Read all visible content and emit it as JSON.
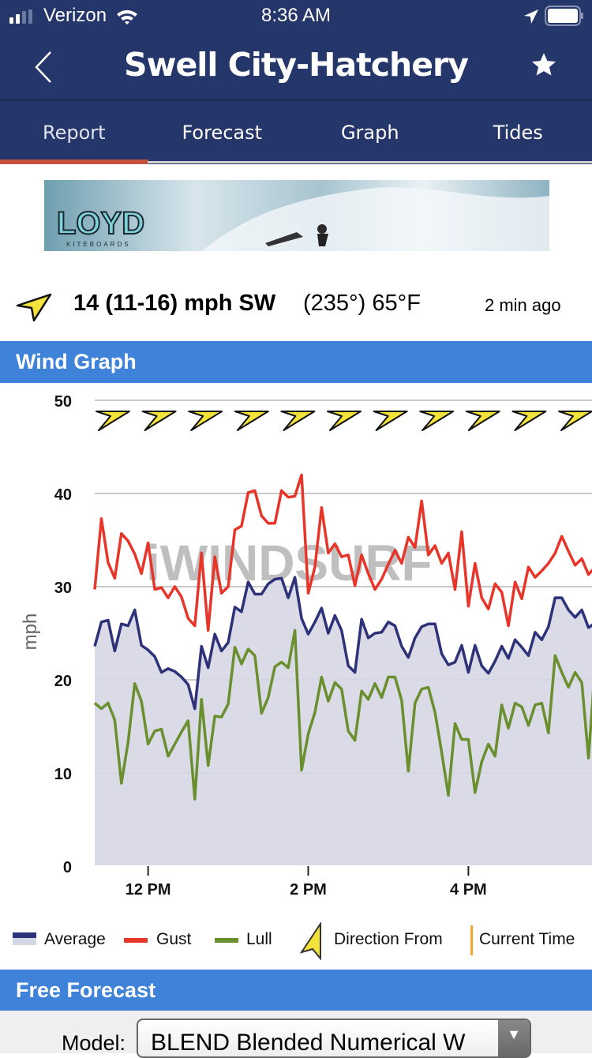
{
  "status_bar": {
    "carrier": "Verizon",
    "time": "8:36 AM"
  },
  "nav": {
    "title": "Swell City-Hatchery",
    "back_icon": "chevron-left-icon",
    "favorite_icon": "star-icon"
  },
  "tabs": [
    {
      "label": "Report",
      "active": true
    },
    {
      "label": "Forecast"
    },
    {
      "label": "Graph"
    },
    {
      "label": "Tides"
    }
  ],
  "banner": {
    "brand": "LOYD",
    "sub": "KITEBOARDS"
  },
  "current": {
    "speed": "14 (11-16) mph SW",
    "degrees": "(235°) 65°F",
    "updated": "2 min ago",
    "direction_icon": "wind-direction-arrow-icon"
  },
  "wind_graph": {
    "header": "Wind Graph",
    "watermark": "iWINDSURF"
  },
  "colors": {
    "nav": "#25366a",
    "section": "#3f82d9",
    "active_tab": "#c4513c",
    "average": "#2e3278",
    "average_fill": "#d6d7e4",
    "gust": "#e8352a",
    "lull": "#6a8f2f",
    "direction": "#f2e23a",
    "current_time": "#f0a830"
  },
  "chart_data": {
    "type": "line",
    "ylabel": "mph",
    "ylim": [
      0,
      50
    ],
    "yticks": [
      "0",
      "10",
      "20",
      "30",
      "40",
      "50"
    ],
    "xticks": [
      {
        "label": "12 PM",
        "time": "12:00"
      },
      {
        "label": "2 PM",
        "time": "14:00"
      },
      {
        "label": "4 PM",
        "time": "16:00"
      }
    ],
    "xlim": [
      "11:20",
      "17:35"
    ],
    "grid": true,
    "x": [
      "11:20",
      "11:25",
      "11:30",
      "11:35",
      "11:40",
      "11:45",
      "11:50",
      "11:55",
      "12:00",
      "12:05",
      "12:10",
      "12:15",
      "12:20",
      "12:25",
      "12:30",
      "12:35",
      "12:40",
      "12:45",
      "12:50",
      "12:55",
      "13:00",
      "13:05",
      "13:10",
      "13:15",
      "13:20",
      "13:25",
      "13:30",
      "13:35",
      "13:40",
      "13:45",
      "13:50",
      "13:55",
      "14:00",
      "14:05",
      "14:10",
      "14:15",
      "14:20",
      "14:25",
      "14:30",
      "14:35",
      "14:40",
      "14:45",
      "14:50",
      "14:55",
      "15:00",
      "15:05",
      "15:10",
      "15:15",
      "15:20",
      "15:25",
      "15:30",
      "15:35",
      "15:40",
      "15:45",
      "15:50",
      "15:55",
      "16:00",
      "16:05",
      "16:10",
      "16:15",
      "16:20",
      "16:25",
      "16:30",
      "16:35",
      "16:40",
      "16:45",
      "16:50",
      "16:55",
      "17:00",
      "17:05",
      "17:10",
      "17:15",
      "17:20",
      "17:25",
      "17:30",
      "17:35"
    ],
    "series": [
      {
        "name": "Average",
        "values": [
          23.6,
          26.2,
          26.4,
          23.1,
          26.0,
          25.8,
          27.5,
          23.7,
          23.2,
          22.5,
          20.8,
          21.2,
          20.9,
          20.3,
          19.5,
          16.9,
          23.6,
          21.3,
          24.9,
          23.1,
          24.0,
          27.8,
          27.3,
          30.5,
          29.2,
          29.2,
          30.3,
          30.8,
          30.9,
          28.8,
          31.0,
          26.6,
          24.9,
          26.2,
          27.7,
          25.0,
          26.9,
          25.3,
          21.5,
          20.8,
          26.5,
          24.5,
          25.0,
          25.1,
          26.2,
          25.8,
          23.6,
          22.4,
          24.5,
          25.7,
          26.0,
          26.0,
          22.8,
          21.6,
          21.9,
          23.7,
          20.8,
          23.7,
          21.5,
          20.7,
          22.0,
          23.6,
          22.3,
          24.3,
          23.5,
          22.6,
          25.1,
          24.3,
          25.7,
          28.8,
          28.8,
          27.5,
          26.7,
          27.5,
          25.6,
          26.1
        ]
      },
      {
        "name": "Gust",
        "values": [
          29.7,
          37.3,
          32.6,
          30.9,
          35.7,
          34.9,
          33.5,
          31.4,
          34.7,
          29.7,
          29.9,
          28.8,
          30.0,
          28.9,
          26.6,
          25.8,
          33.6,
          25.3,
          33.2,
          29.3,
          30.0,
          36.1,
          36.5,
          40.1,
          40.3,
          37.6,
          36.8,
          36.8,
          40.3,
          39.6,
          39.7,
          42.0,
          29.3,
          32.1,
          38.5,
          33.6,
          34.6,
          33.2,
          33.4,
          30.1,
          33.4,
          31.4,
          29.7,
          30.8,
          32.4,
          33.9,
          32.5,
          35.3,
          34.2,
          39.2,
          33.4,
          34.4,
          32.5,
          33.6,
          29.7,
          35.9,
          27.9,
          32.5,
          28.8,
          27.6,
          30.3,
          29.4,
          25.8,
          30.5,
          28.7,
          32.1,
          31.0,
          31.7,
          32.5,
          33.6,
          35.4,
          33.8,
          32.3,
          33.0,
          31.3,
          32.1
        ]
      },
      {
        "name": "Lull",
        "values": [
          17.5,
          16.9,
          17.5,
          15.7,
          8.9,
          13.3,
          19.6,
          17.7,
          13.1,
          14.5,
          14.7,
          11.8,
          13.1,
          14.4,
          15.6,
          7.2,
          17.9,
          10.8,
          16.1,
          16.0,
          17.4,
          23.5,
          21.7,
          23.3,
          22.6,
          16.4,
          18.1,
          21.4,
          21.9,
          21.3,
          25.3,
          10.3,
          14.2,
          16.5,
          20.3,
          17.7,
          19.7,
          19.0,
          14.5,
          13.5,
          18.8,
          17.9,
          19.6,
          18.1,
          20.3,
          20.3,
          17.8,
          10.2,
          17.5,
          19.0,
          19.2,
          16.5,
          12.2,
          7.6,
          15.3,
          13.6,
          13.6,
          7.9,
          11.2,
          13.1,
          11.8,
          17.3,
          14.8,
          17.5,
          17.1,
          15.1,
          17.3,
          17.5,
          14.3,
          22.6,
          20.8,
          19.2,
          20.8,
          19.7,
          11.6,
          21.6
        ]
      }
    ],
    "direction_from_deg": [
      235,
      235,
      235,
      235,
      235,
      235,
      235,
      235,
      235,
      235,
      235
    ]
  },
  "legend": {
    "average": "Average",
    "gust": "Gust",
    "lull": "Lull",
    "direction": "Direction From",
    "current_time": "Current Time"
  },
  "free_forecast": {
    "header": "Free Forecast",
    "model_label": "Model:",
    "model_value": "BLEND Blended Numerical W"
  }
}
